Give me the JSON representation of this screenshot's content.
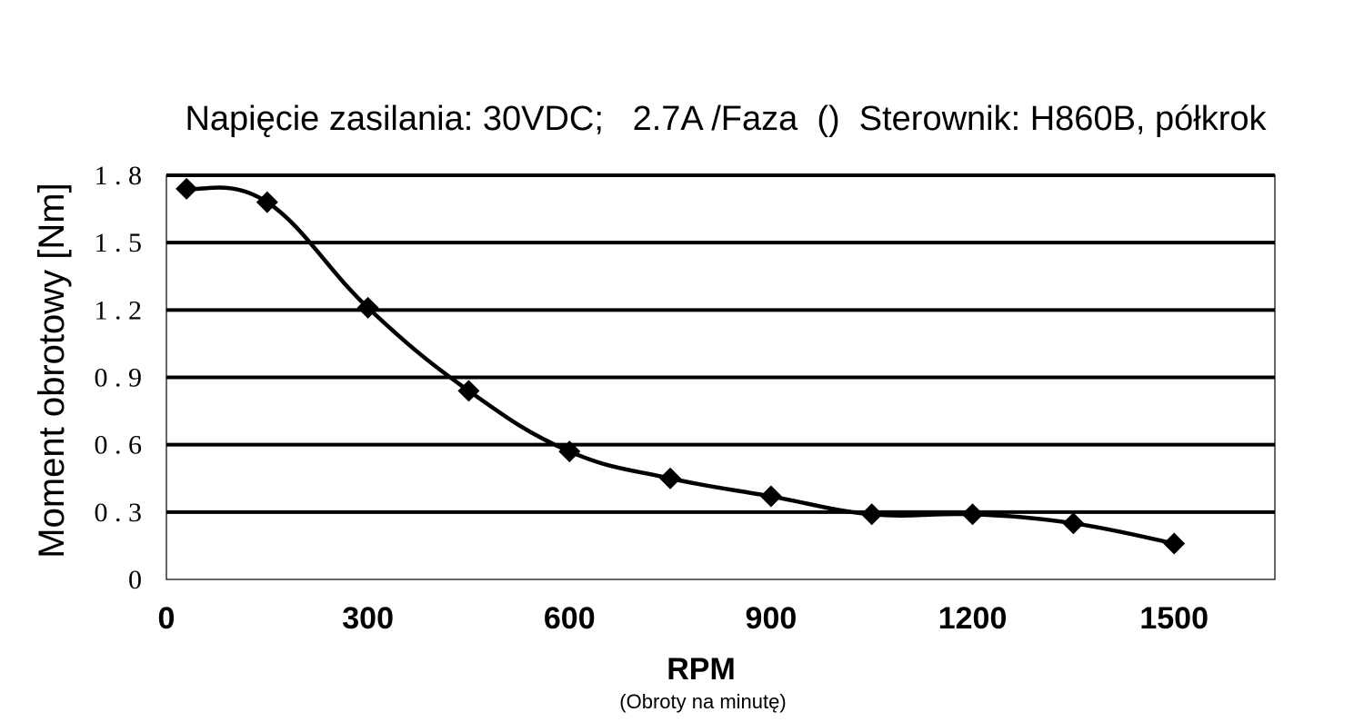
{
  "chart_data": {
    "type": "line",
    "title": "Napięcie zasilania: 30VDC;   2.7A /Faza  ()  Sterownik: H860B, półkrok",
    "xlabel": "RPM",
    "xlabel_sub": "(Obroty na minutę)",
    "ylabel": "Moment obrotowy [Nm]",
    "xlim": [
      0,
      1650
    ],
    "ylim": [
      0,
      1.8
    ],
    "x_ticks": [
      0,
      300,
      600,
      900,
      1200,
      1500
    ],
    "x_tick_labels": [
      "0",
      "300",
      "600",
      "900",
      "1200",
      "1500"
    ],
    "y_ticks": [
      0,
      0.3,
      0.6,
      0.9,
      1.2,
      1.5,
      1.8
    ],
    "y_tick_labels": [
      "0",
      "0.3",
      "0.6",
      "0.9",
      "1.2",
      "1.5",
      "1.8"
    ],
    "grid": "horizontal",
    "legend": "none",
    "series": [
      {
        "marker": "diamond",
        "color": "#000000",
        "x": [
          30,
          150,
          300,
          450,
          600,
          750,
          900,
          1050,
          1200,
          1350,
          1500
        ],
        "y": [
          1.74,
          1.68,
          1.21,
          0.84,
          0.57,
          0.45,
          0.37,
          0.29,
          0.29,
          0.25,
          0.16
        ]
      }
    ]
  }
}
